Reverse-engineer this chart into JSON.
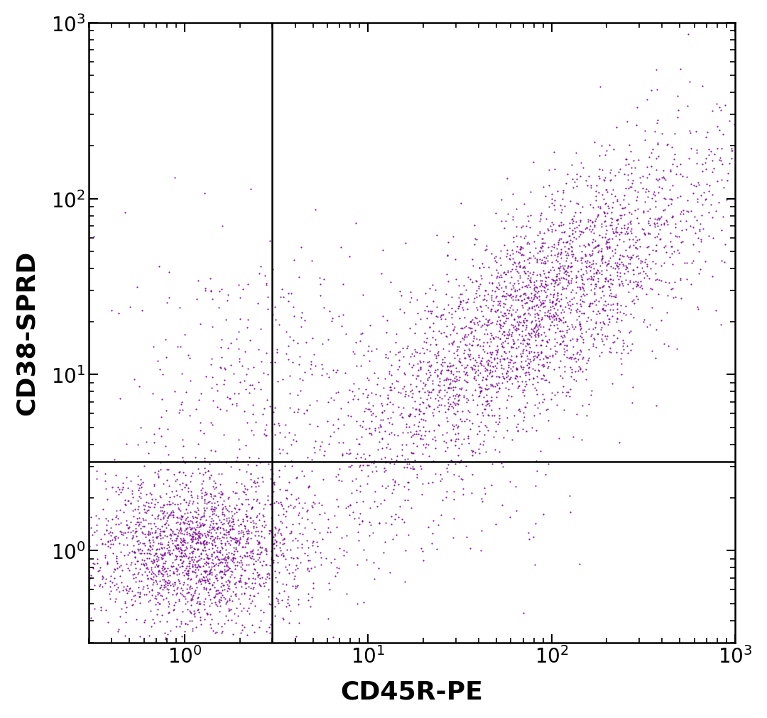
{
  "xlabel": "CD45R-PE",
  "ylabel": "CD38-SPRD",
  "dot_color": "#7B0099",
  "background_color": "#ffffff",
  "xlim_log": [
    0.3,
    1000
  ],
  "ylim_log": [
    0.3,
    1000
  ],
  "xline": 3.0,
  "yline": 3.2,
  "xlabel_fontsize": 26,
  "ylabel_fontsize": 26,
  "tick_fontsize": 20,
  "dot_size": 2.5,
  "dot_alpha": 0.9,
  "seed": 42
}
